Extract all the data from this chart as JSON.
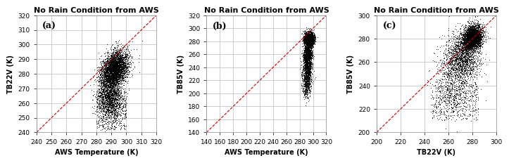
{
  "title": "No Rain Condition from AWS",
  "panels": [
    {
      "label": "(a)",
      "xlabel": "AWS Temperature (K)",
      "ylabel": "TB22V (K)",
      "xlim": [
        240,
        320
      ],
      "ylim": [
        240,
        320
      ],
      "xticks": [
        240,
        250,
        260,
        270,
        280,
        290,
        300,
        310,
        320
      ],
      "yticks": [
        240,
        250,
        260,
        270,
        280,
        290,
        300,
        310,
        320
      ]
    },
    {
      "label": "(b)",
      "xlabel": "AWS Temperature (K)",
      "ylabel": "TB85V (K)",
      "xlim": [
        140,
        320
      ],
      "ylim": [
        140,
        320
      ],
      "xticks": [
        140,
        160,
        180,
        200,
        220,
        240,
        260,
        280,
        300,
        320
      ],
      "yticks": [
        140,
        160,
        180,
        200,
        220,
        240,
        260,
        280,
        300,
        320
      ]
    },
    {
      "label": "(c)",
      "xlabel": "TB22V (K)",
      "ylabel": "TB85V (K)",
      "xlim": [
        200,
        300
      ],
      "ylim": [
        200,
        300
      ],
      "xticks": [
        200,
        220,
        240,
        260,
        280,
        300
      ],
      "yticks": [
        200,
        220,
        240,
        260,
        280,
        300
      ]
    }
  ],
  "scatter_color": "#000000",
  "scatter_marker": ".",
  "scatter_size": 1.5,
  "diag_color": "#cc0000",
  "diag_linestyle": "--",
  "diag_linewidth": 0.8,
  "bg_color": "#ffffff",
  "grid_color": "#bbbbbb",
  "title_fontsize": 8,
  "label_fontsize": 7,
  "tick_fontsize": 6.5,
  "panel_label_fontsize": 9
}
